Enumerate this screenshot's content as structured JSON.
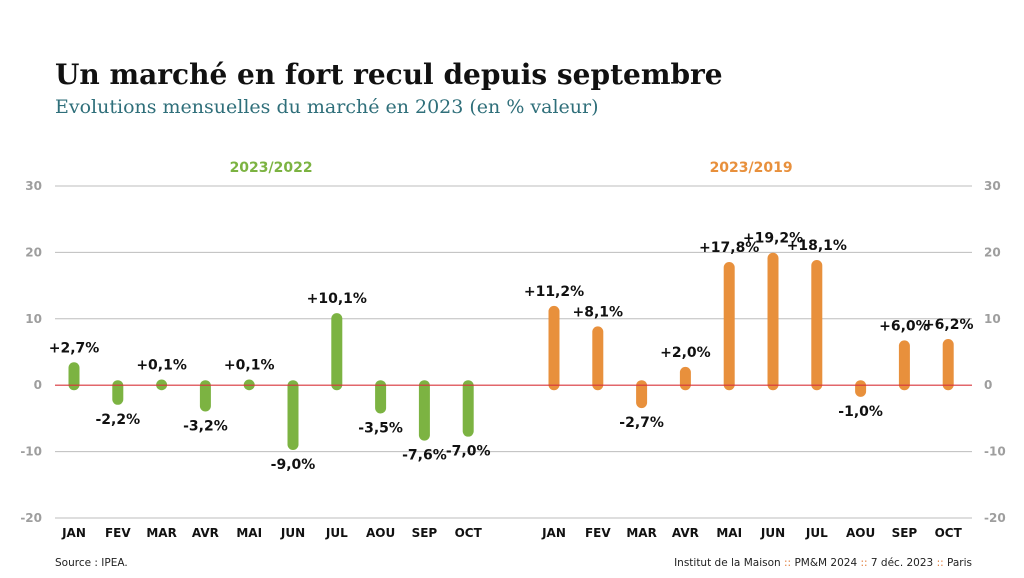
{
  "header": {
    "title": "Un marché en fort recul depuis septembre",
    "subtitle": "Evolutions mensuelles du marché en 2023 (en % valeur)"
  },
  "footer": {
    "source": "Source : IPEA.",
    "credit_parts": [
      "Institut de la Maison",
      "PM&M 2024",
      "7 déc. 2023",
      "Paris"
    ],
    "separator": "::"
  },
  "chart_data": {
    "type": "bar",
    "ylim": [
      -20,
      30
    ],
    "yticks": [
      30,
      20,
      10,
      0,
      -10,
      -20
    ],
    "grid": true,
    "zero_line_color": "#d9343a",
    "series": [
      {
        "name": "2023/2022",
        "color": "#7cb342",
        "categories": [
          "JAN",
          "FEV",
          "MAR",
          "AVR",
          "MAI",
          "JUN",
          "JUL",
          "AOU",
          "SEP",
          "OCT"
        ],
        "values": [
          2.7,
          -2.2,
          0.1,
          -3.2,
          0.1,
          -9.0,
          10.1,
          -3.5,
          -7.6,
          -7.0
        ],
        "labels": [
          "+2,7%",
          "-2,2%",
          "+0,1%",
          "-3,2%",
          "+0,1%",
          "-9,0%",
          "+10,1%",
          "-3,5%",
          "-7,6%",
          "-7,0%"
        ]
      },
      {
        "name": "2023/2019",
        "color": "#e8903c",
        "categories": [
          "JAN",
          "FEV",
          "MAR",
          "AVR",
          "MAI",
          "JUN",
          "JUL",
          "AOU",
          "SEP",
          "OCT"
        ],
        "values": [
          11.2,
          8.1,
          -2.7,
          2.0,
          17.8,
          19.2,
          18.1,
          -1.0,
          6.0,
          6.2
        ],
        "labels": [
          "+11,2%",
          "+8,1%",
          "-2,7%",
          "+2,0%",
          "+17,8%",
          "+19,2%",
          "+18,1%",
          "-1,0%",
          "+6,0%",
          "+6,2%"
        ]
      }
    ]
  }
}
